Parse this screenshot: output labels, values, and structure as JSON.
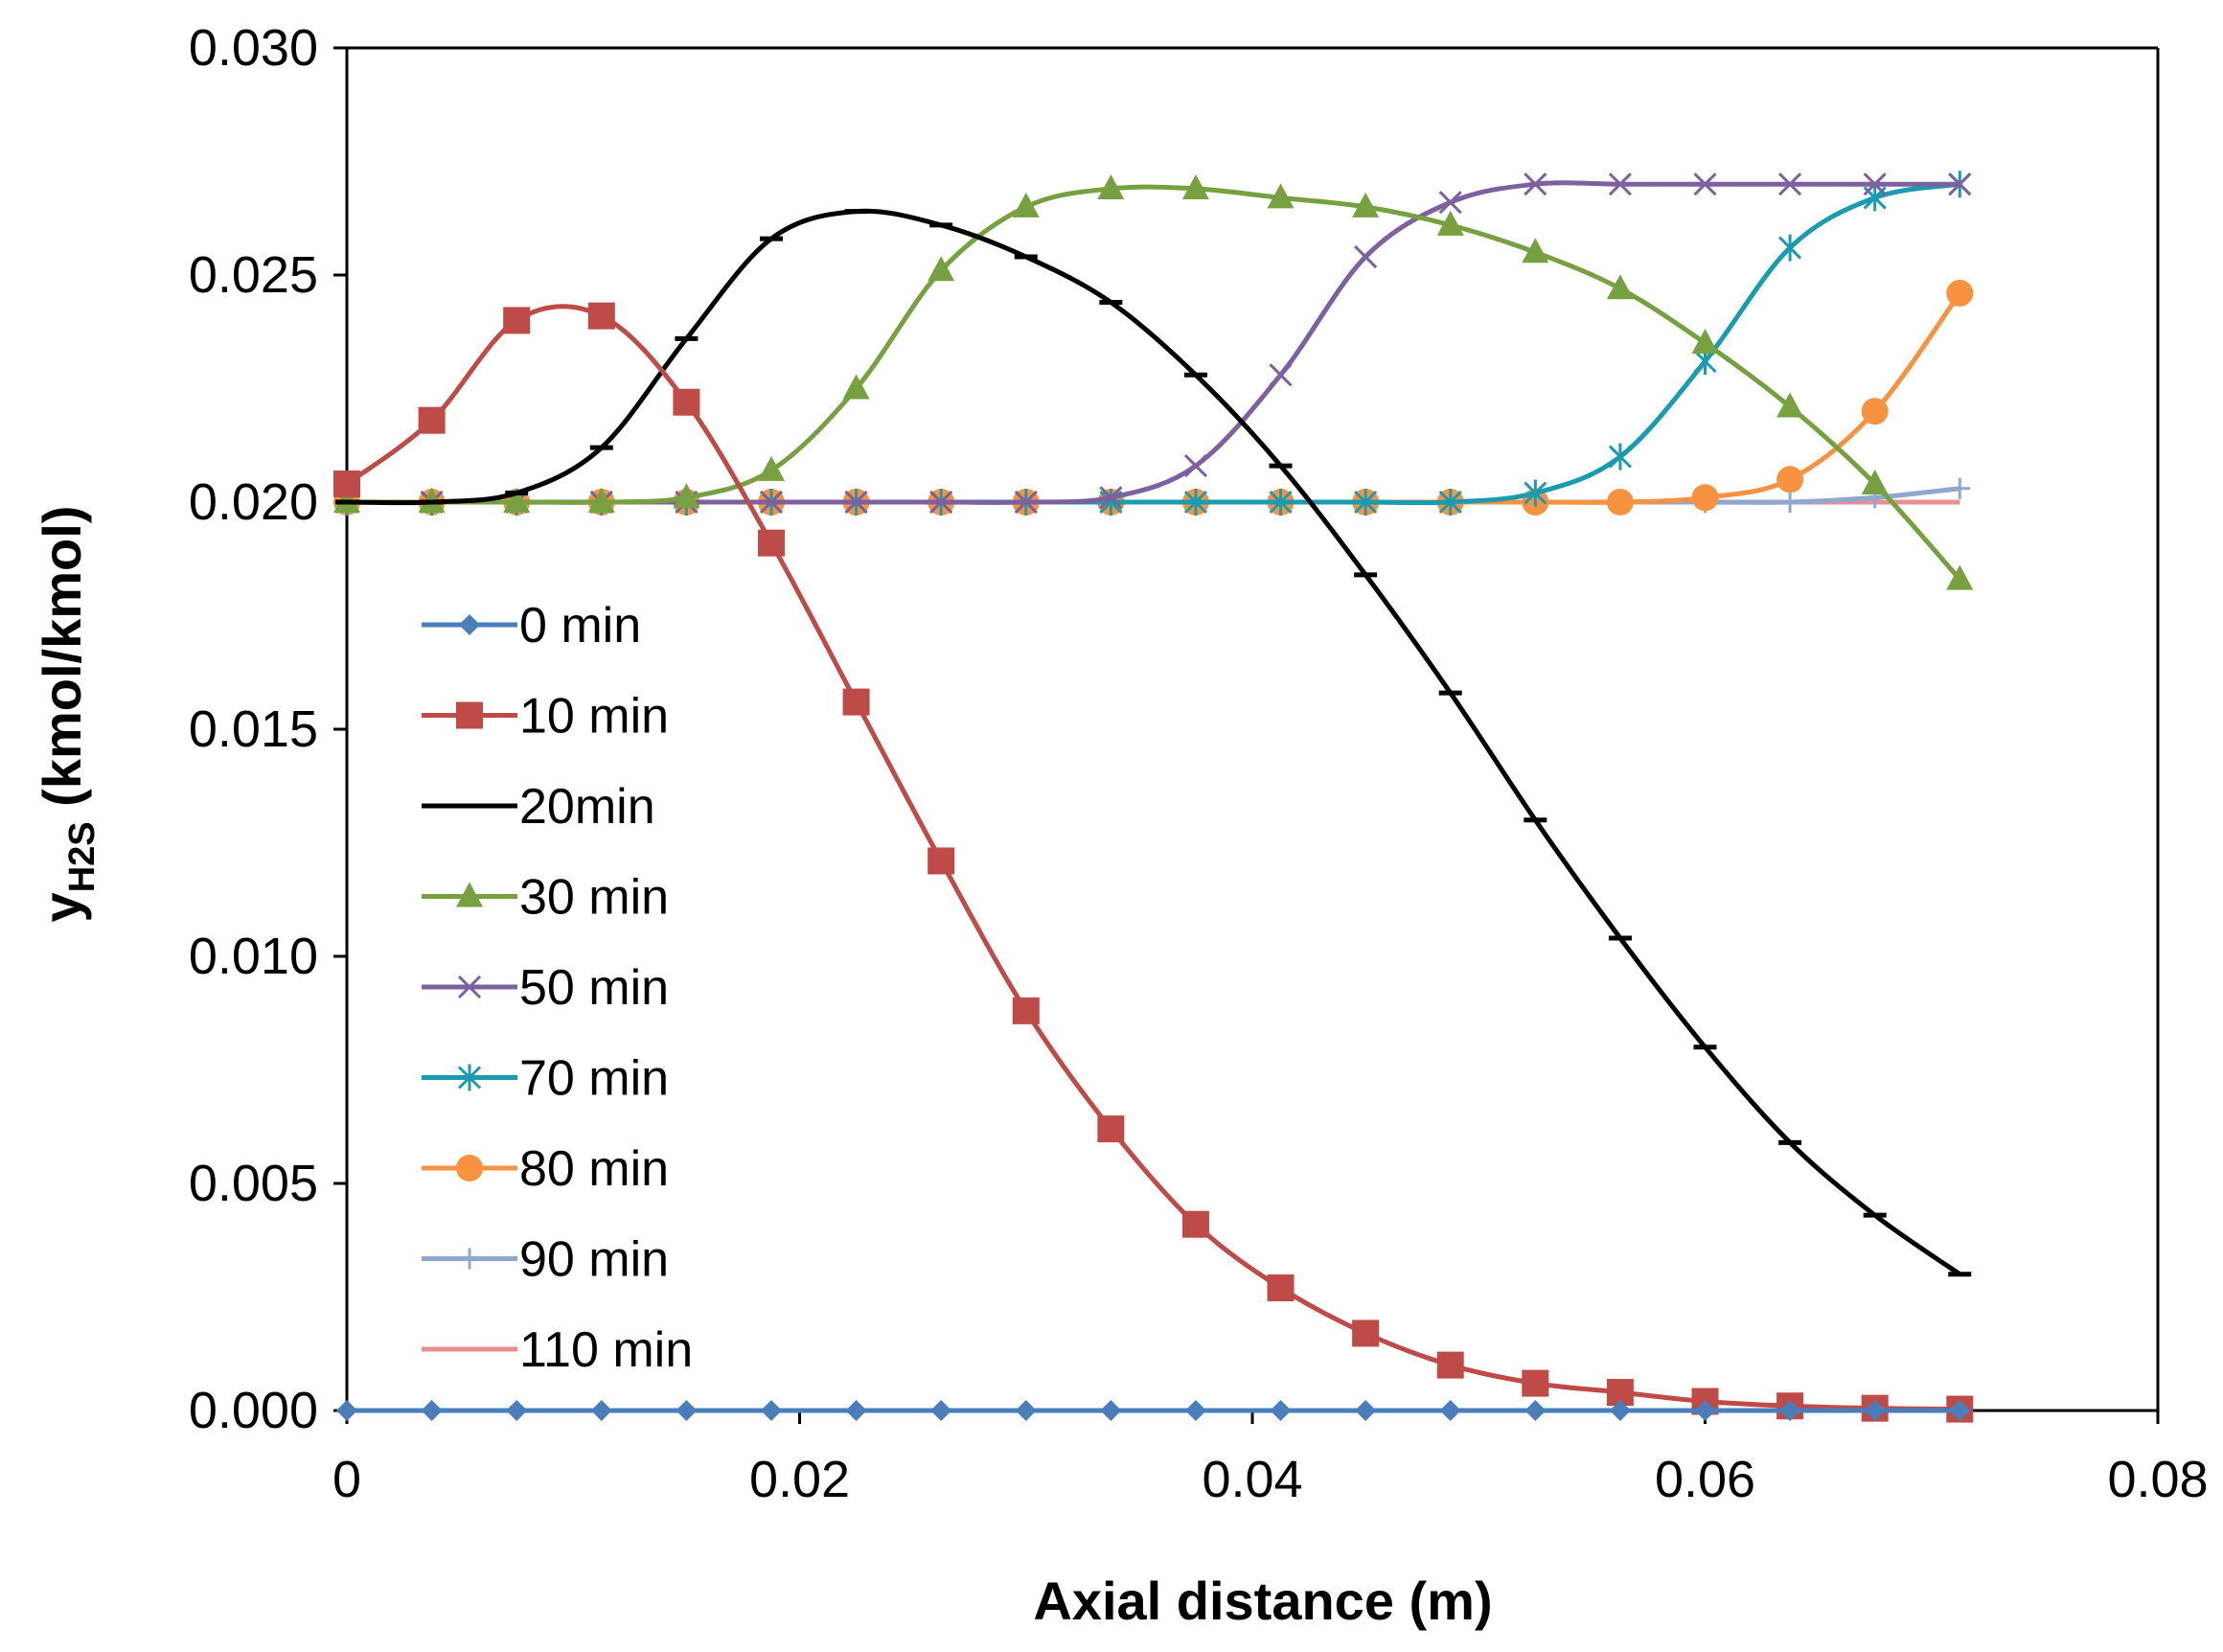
{
  "chart_data": {
    "type": "line",
    "title": "",
    "xlabel": "Axial distance (m)",
    "ylabel": {
      "main": "y",
      "subscript": "H2S",
      "units": " (kmol/kmol)"
    },
    "xlim": [
      0,
      0.08
    ],
    "ylim": [
      0,
      0.03
    ],
    "x_ticks": [
      "0",
      "0.02",
      "0.04",
      "0.06",
      "0.08"
    ],
    "y_ticks": [
      "0.000",
      "0.005",
      "0.010",
      "0.015",
      "0.020",
      "0.025",
      "0.030"
    ],
    "grid": false,
    "legend_position": "left-center",
    "x": [
      0,
      0.00375,
      0.0075,
      0.01125,
      0.015,
      0.01875,
      0.0225,
      0.02625,
      0.03,
      0.03375,
      0.0375,
      0.04125,
      0.045,
      0.04875,
      0.0525,
      0.05625,
      0.06,
      0.06375,
      0.0675,
      0.07125
    ],
    "series": [
      {
        "name": "0 min",
        "color": "#4a7ebb",
        "marker": "diamond",
        "values": [
          0,
          0,
          0,
          0,
          0,
          0,
          0,
          0,
          0,
          0,
          0,
          0,
          0,
          0,
          0,
          0,
          0,
          0,
          0,
          0
        ]
      },
      {
        "name": "10 min",
        "color": "#be4b48",
        "marker": "square",
        "values": [
          0.0204,
          0.0218,
          0.024,
          0.0241,
          0.0222,
          0.0191,
          0.0156,
          0.0121,
          0.0088,
          0.0062,
          0.0041,
          0.0027,
          0.0017,
          0.001,
          0.0006,
          0.0004,
          0.0002,
          0.0001,
          5e-05,
          3e-05
        ]
      },
      {
        "name": "20min",
        "color": "#000000",
        "marker": "dash",
        "values": [
          0.02,
          0.02,
          0.0202,
          0.0212,
          0.0236,
          0.0258,
          0.0264,
          0.0261,
          0.0254,
          0.0244,
          0.0228,
          0.0208,
          0.0184,
          0.0158,
          0.013,
          0.0104,
          0.008,
          0.0059,
          0.0043,
          0.003
        ]
      },
      {
        "name": "30 min",
        "color": "#77a040",
        "marker": "triangle",
        "values": [
          0.02,
          0.02,
          0.02,
          0.02,
          0.0201,
          0.0207,
          0.0225,
          0.0251,
          0.0265,
          0.0269,
          0.0269,
          0.0267,
          0.0265,
          0.0261,
          0.0255,
          0.0247,
          0.0235,
          0.0221,
          0.0204,
          0.0183
        ]
      },
      {
        "name": "50 min",
        "color": "#7d60a0",
        "marker": "x",
        "values": [
          0.02,
          0.02,
          0.02,
          0.02,
          0.02,
          0.02,
          0.02,
          0.02,
          0.02,
          0.0201,
          0.0208,
          0.0228,
          0.0254,
          0.0266,
          0.027,
          0.027,
          0.027,
          0.027,
          0.027,
          0.027
        ]
      },
      {
        "name": "70 min",
        "color": "#1b9bb0",
        "marker": "asterisk",
        "values": [
          0.02,
          0.02,
          0.02,
          0.02,
          0.02,
          0.02,
          0.02,
          0.02,
          0.02,
          0.02,
          0.02,
          0.02,
          0.02,
          0.02,
          0.0202,
          0.021,
          0.0231,
          0.0256,
          0.0267,
          0.027
        ]
      },
      {
        "name": "80 min",
        "color": "#f69240",
        "marker": "circle",
        "values": [
          0.02,
          0.02,
          0.02,
          0.02,
          0.02,
          0.02,
          0.02,
          0.02,
          0.02,
          0.02,
          0.02,
          0.02,
          0.02,
          0.02,
          0.02,
          0.02,
          0.0201,
          0.0205,
          0.022,
          0.0246
        ]
      },
      {
        "name": "90 min",
        "color": "#8ea8d0",
        "marker": "plus",
        "values": [
          0.02,
          0.02,
          0.02,
          0.02,
          0.02,
          0.02,
          0.02,
          0.02,
          0.02,
          0.02,
          0.02,
          0.02,
          0.02,
          0.02,
          0.02,
          0.02,
          0.02,
          0.02,
          0.0201,
          0.0203
        ]
      },
      {
        "name": "110 min",
        "color": "#e89090",
        "marker": "none",
        "values": [
          0.02,
          0.02,
          0.02,
          0.02,
          0.02,
          0.02,
          0.02,
          0.02,
          0.02,
          0.02,
          0.02,
          0.02,
          0.02,
          0.02,
          0.02,
          0.02,
          0.02,
          0.02,
          0.02,
          0.02
        ]
      }
    ]
  }
}
